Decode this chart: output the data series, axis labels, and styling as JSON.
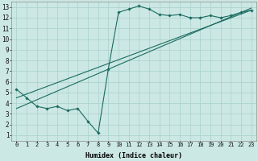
{
  "xlabel": "Humidex (Indice chaleur)",
  "bg_color": "#cce8e4",
  "grid_color": "#aed4d0",
  "line_color": "#1a6b60",
  "xmin": -0.5,
  "xmax": 23.5,
  "ymin": 0.5,
  "ymax": 13.5,
  "curve_x": [
    0,
    1,
    2,
    3,
    4,
    5,
    6,
    7,
    8,
    9,
    10,
    11,
    12,
    13,
    14,
    15,
    16,
    17,
    18,
    19,
    20,
    21,
    22,
    23
  ],
  "curve_y": [
    5.3,
    4.5,
    3.7,
    3.5,
    3.7,
    3.3,
    3.5,
    2.3,
    1.2,
    7.2,
    12.5,
    12.8,
    13.1,
    12.8,
    12.3,
    12.2,
    12.3,
    12.0,
    12.0,
    12.2,
    12.0,
    12.2,
    12.5,
    12.7
  ],
  "line1_x": [
    0,
    23
  ],
  "line1_y": [
    4.5,
    12.7
  ],
  "line2_x": [
    0,
    23
  ],
  "line2_y": [
    3.5,
    12.9
  ],
  "xticks": [
    0,
    1,
    2,
    3,
    4,
    5,
    6,
    7,
    8,
    9,
    10,
    11,
    12,
    13,
    14,
    15,
    16,
    17,
    18,
    19,
    20,
    21,
    22,
    23
  ],
  "yticks": [
    1,
    2,
    3,
    4,
    5,
    6,
    7,
    8,
    9,
    10,
    11,
    12,
    13
  ],
  "xlabel_fontsize": 6,
  "tick_fontsize": 5,
  "ytick_fontsize": 5.5
}
